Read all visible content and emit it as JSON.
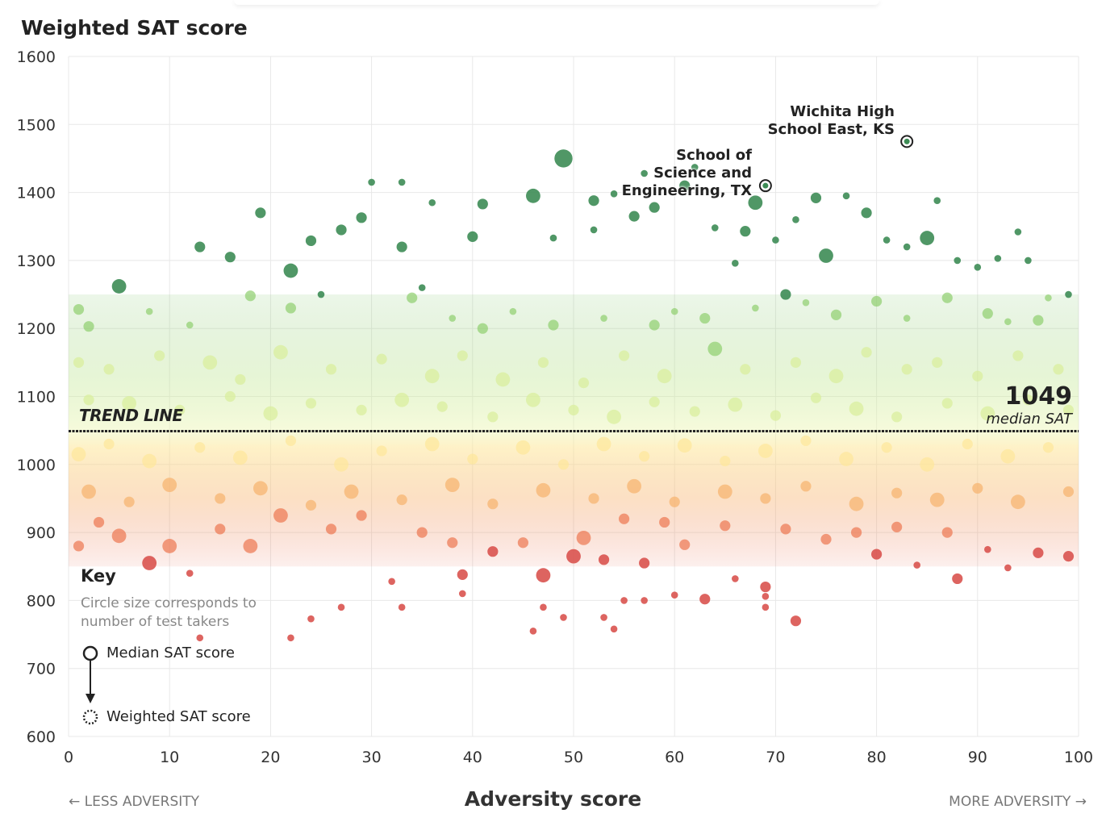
{
  "chart_data": {
    "type": "scatter",
    "title": "Weighted SAT score",
    "xlabel": "Adversity score",
    "ylabel": "Weighted SAT score",
    "xlim": [
      0,
      100
    ],
    "ylim": [
      600,
      1600
    ],
    "x_ticks": [
      "0",
      "10",
      "20",
      "30",
      "40",
      "50",
      "60",
      "70",
      "80",
      "90",
      "100"
    ],
    "y_ticks": [
      "1600",
      "1500",
      "1400",
      "1300",
      "1200",
      "1100",
      "1000",
      "900",
      "800",
      "700",
      "600"
    ],
    "grid": true,
    "x_direction_labels": {
      "left": "← LESS ADVERSITY",
      "right": "MORE ADVERSITY →"
    },
    "trend_line": {
      "label": "TREND LINE",
      "value": 1049,
      "value_label": "1049",
      "value_caption": "median SAT"
    },
    "annotations": [
      {
        "label_line1": "Wichita High",
        "label_line2": "School East, KS",
        "x": 83,
        "y": 1475
      },
      {
        "label_line1": "School of",
        "label_line2": "Science and",
        "label_line3": "Engineering, TX",
        "x": 69,
        "y": 1410
      }
    ],
    "key": {
      "title": "Key",
      "description": "Circle size corresponds to number of test takers",
      "median_label": "Median SAT score",
      "weighted_label": "Weighted SAT score"
    },
    "color_scale": {
      "high": "#3d8c55",
      "upper": "#8fcf6e",
      "near_median_above": "#d8ee9a",
      "near_median_below": "#fde79a",
      "lower": "#f7b26c",
      "low": "#ec7650",
      "lowest": "#d9534f"
    },
    "points_note_fields": [
      "adversity",
      "weighted_sat",
      "size_rank"
    ],
    "points": [
      [
        49,
        1450,
        4
      ],
      [
        46,
        1395,
        3
      ],
      [
        5,
        1262,
        3
      ],
      [
        85,
        1333,
        3
      ],
      [
        22,
        1285,
        3
      ],
      [
        75,
        1307,
        3
      ],
      [
        68,
        1385,
        3
      ],
      [
        41,
        1383,
        2
      ],
      [
        52,
        1388,
        2
      ],
      [
        74,
        1392,
        2
      ],
      [
        79,
        1370,
        2
      ],
      [
        61,
        1410,
        2
      ],
      [
        58,
        1378,
        2
      ],
      [
        67,
        1343,
        2
      ],
      [
        56,
        1365,
        2
      ],
      [
        40,
        1335,
        2
      ],
      [
        33,
        1320,
        2
      ],
      [
        29,
        1363,
        2
      ],
      [
        27,
        1345,
        2
      ],
      [
        24,
        1329,
        2
      ],
      [
        19,
        1370,
        2
      ],
      [
        16,
        1305,
        2
      ],
      [
        13,
        1320,
        2
      ],
      [
        30,
        1415,
        1
      ],
      [
        33,
        1415,
        1
      ],
      [
        36,
        1385,
        1
      ],
      [
        48,
        1333,
        1
      ],
      [
        52,
        1345,
        1
      ],
      [
        54,
        1398,
        1
      ],
      [
        57,
        1428,
        1
      ],
      [
        62,
        1437,
        1
      ],
      [
        64,
        1348,
        1
      ],
      [
        66,
        1296,
        1
      ],
      [
        70,
        1330,
        1
      ],
      [
        72,
        1360,
        1
      ],
      [
        77,
        1395,
        1
      ],
      [
        81,
        1330,
        1
      ],
      [
        83,
        1320,
        1
      ],
      [
        86,
        1388,
        1
      ],
      [
        88,
        1300,
        1
      ],
      [
        90,
        1290,
        1
      ],
      [
        92,
        1303,
        1
      ],
      [
        94,
        1342,
        1
      ],
      [
        95,
        1300,
        1
      ],
      [
        97,
        1245,
        1
      ],
      [
        1,
        1228,
        2
      ],
      [
        2,
        1203,
        2
      ],
      [
        8,
        1225,
        1
      ],
      [
        12,
        1205,
        1
      ],
      [
        18,
        1248,
        2
      ],
      [
        22,
        1230,
        2
      ],
      [
        25,
        1250,
        1
      ],
      [
        34,
        1245,
        2
      ],
      [
        35,
        1260,
        1
      ],
      [
        38,
        1215,
        1
      ],
      [
        41,
        1200,
        2
      ],
      [
        44,
        1225,
        1
      ],
      [
        48,
        1205,
        2
      ],
      [
        53,
        1215,
        1
      ],
      [
        58,
        1205,
        2
      ],
      [
        60,
        1225,
        1
      ],
      [
        63,
        1215,
        2
      ],
      [
        68,
        1230,
        1
      ],
      [
        71,
        1250,
        2
      ],
      [
        73,
        1238,
        1
      ],
      [
        76,
        1220,
        2
      ],
      [
        80,
        1240,
        2
      ],
      [
        83,
        1215,
        1
      ],
      [
        87,
        1245,
        2
      ],
      [
        91,
        1222,
        2
      ],
      [
        93,
        1210,
        1
      ],
      [
        96,
        1212,
        2
      ],
      [
        99,
        1250,
        1
      ],
      [
        1,
        1150,
        2
      ],
      [
        4,
        1140,
        2
      ],
      [
        9,
        1160,
        2
      ],
      [
        14,
        1150,
        3
      ],
      [
        17,
        1125,
        2
      ],
      [
        21,
        1165,
        3
      ],
      [
        26,
        1140,
        2
      ],
      [
        31,
        1155,
        2
      ],
      [
        36,
        1130,
        3
      ],
      [
        39,
        1160,
        2
      ],
      [
        43,
        1125,
        3
      ],
      [
        47,
        1150,
        2
      ],
      [
        51,
        1120,
        2
      ],
      [
        55,
        1160,
        2
      ],
      [
        59,
        1130,
        3
      ],
      [
        64,
        1170,
        3
      ],
      [
        67,
        1140,
        2
      ],
      [
        72,
        1150,
        2
      ],
      [
        76,
        1130,
        3
      ],
      [
        79,
        1165,
        2
      ],
      [
        83,
        1140,
        2
      ],
      [
        86,
        1150,
        2
      ],
      [
        90,
        1130,
        2
      ],
      [
        94,
        1160,
        2
      ],
      [
        98,
        1140,
        2
      ],
      [
        2,
        1095,
        2
      ],
      [
        6,
        1090,
        3
      ],
      [
        11,
        1080,
        2
      ],
      [
        16,
        1100,
        2
      ],
      [
        20,
        1075,
        3
      ],
      [
        24,
        1090,
        2
      ],
      [
        29,
        1080,
        2
      ],
      [
        33,
        1095,
        3
      ],
      [
        37,
        1085,
        2
      ],
      [
        42,
        1070,
        2
      ],
      [
        46,
        1095,
        3
      ],
      [
        50,
        1080,
        2
      ],
      [
        54,
        1070,
        3
      ],
      [
        58,
        1092,
        2
      ],
      [
        62,
        1078,
        2
      ],
      [
        66,
        1088,
        3
      ],
      [
        70,
        1072,
        2
      ],
      [
        74,
        1098,
        2
      ],
      [
        78,
        1082,
        3
      ],
      [
        82,
        1070,
        2
      ],
      [
        87,
        1090,
        2
      ],
      [
        91,
        1075,
        3
      ],
      [
        95,
        1095,
        2
      ],
      [
        99,
        1080,
        2
      ],
      [
        1,
        1015,
        3
      ],
      [
        4,
        1030,
        2
      ],
      [
        8,
        1005,
        3
      ],
      [
        13,
        1025,
        2
      ],
      [
        17,
        1010,
        3
      ],
      [
        22,
        1035,
        2
      ],
      [
        27,
        1000,
        3
      ],
      [
        31,
        1020,
        2
      ],
      [
        36,
        1030,
        3
      ],
      [
        40,
        1008,
        2
      ],
      [
        45,
        1025,
        3
      ],
      [
        49,
        1000,
        2
      ],
      [
        53,
        1030,
        3
      ],
      [
        57,
        1012,
        2
      ],
      [
        61,
        1028,
        3
      ],
      [
        65,
        1005,
        2
      ],
      [
        69,
        1020,
        3
      ],
      [
        73,
        1035,
        2
      ],
      [
        77,
        1008,
        3
      ],
      [
        81,
        1025,
        2
      ],
      [
        85,
        1000,
        3
      ],
      [
        89,
        1030,
        2
      ],
      [
        93,
        1012,
        3
      ],
      [
        97,
        1025,
        2
      ],
      [
        2,
        960,
        3
      ],
      [
        6,
        945,
        2
      ],
      [
        10,
        970,
        3
      ],
      [
        15,
        950,
        2
      ],
      [
        19,
        965,
        3
      ],
      [
        24,
        940,
        2
      ],
      [
        28,
        960,
        3
      ],
      [
        33,
        948,
        2
      ],
      [
        38,
        970,
        3
      ],
      [
        42,
        942,
        2
      ],
      [
        47,
        962,
        3
      ],
      [
        52,
        950,
        2
      ],
      [
        56,
        968,
        3
      ],
      [
        60,
        945,
        2
      ],
      [
        65,
        960,
        3
      ],
      [
        69,
        950,
        2
      ],
      [
        73,
        968,
        2
      ],
      [
        78,
        942,
        3
      ],
      [
        82,
        958,
        2
      ],
      [
        86,
        948,
        3
      ],
      [
        90,
        965,
        2
      ],
      [
        94,
        945,
        3
      ],
      [
        99,
        960,
        2
      ],
      [
        1,
        880,
        2
      ],
      [
        3,
        915,
        2
      ],
      [
        5,
        895,
        3
      ],
      [
        8,
        855,
        3
      ],
      [
        10,
        880,
        3
      ],
      [
        12,
        840,
        1
      ],
      [
        15,
        905,
        2
      ],
      [
        18,
        880,
        3
      ],
      [
        21,
        925,
        3
      ],
      [
        26,
        905,
        2
      ],
      [
        29,
        925,
        2
      ],
      [
        32,
        828,
        1
      ],
      [
        35,
        900,
        2
      ],
      [
        38,
        885,
        2
      ],
      [
        39,
        838,
        2
      ],
      [
        42,
        872,
        2
      ],
      [
        45,
        885,
        2
      ],
      [
        47,
        837,
        3
      ],
      [
        50,
        865,
        3
      ],
      [
        51,
        892,
        3
      ],
      [
        53,
        860,
        2
      ],
      [
        55,
        920,
        2
      ],
      [
        57,
        855,
        2
      ],
      [
        59,
        915,
        2
      ],
      [
        61,
        882,
        2
      ],
      [
        63,
        802,
        2
      ],
      [
        65,
        910,
        2
      ],
      [
        66,
        832,
        1
      ],
      [
        69,
        820,
        2
      ],
      [
        71,
        905,
        2
      ],
      [
        72,
        770,
        2
      ],
      [
        75,
        890,
        2
      ],
      [
        78,
        900,
        2
      ],
      [
        80,
        868,
        2
      ],
      [
        82,
        908,
        2
      ],
      [
        84,
        852,
        1
      ],
      [
        87,
        900,
        2
      ],
      [
        88,
        832,
        2
      ],
      [
        91,
        875,
        1
      ],
      [
        93,
        848,
        1
      ],
      [
        96,
        870,
        2
      ],
      [
        99,
        865,
        2
      ],
      [
        13,
        745,
        1
      ],
      [
        22,
        745,
        1
      ],
      [
        24,
        773,
        1
      ],
      [
        27,
        790,
        1
      ],
      [
        33,
        790,
        1
      ],
      [
        39,
        810,
        1
      ],
      [
        46,
        755,
        1
      ],
      [
        47,
        790,
        1
      ],
      [
        49,
        775,
        1
      ],
      [
        53,
        775,
        1
      ],
      [
        54,
        758,
        1
      ],
      [
        55,
        800,
        1
      ],
      [
        57,
        800,
        1
      ],
      [
        60,
        808,
        1
      ],
      [
        69,
        790,
        1
      ],
      [
        69,
        806,
        1
      ]
    ]
  }
}
